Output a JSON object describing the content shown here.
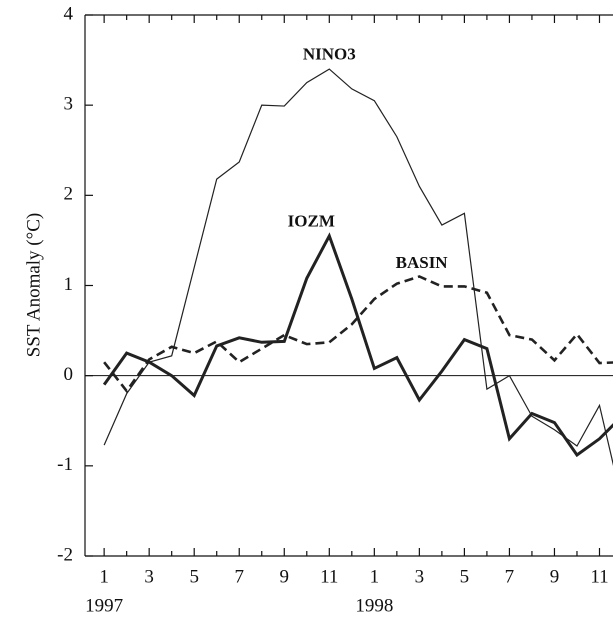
{
  "chart_data": {
    "type": "line",
    "y_label": "SST Anomaly (°C)",
    "x": [
      1,
      2,
      3,
      4,
      5,
      6,
      7,
      8,
      9,
      10,
      11,
      12,
      13,
      14,
      15,
      16,
      17,
      18,
      19,
      20,
      21,
      22,
      23,
      24
    ],
    "series": [
      {
        "name": "NINO3",
        "color": "#222",
        "width": 1.2,
        "dash": "none",
        "values": [
          -0.77,
          -0.2,
          0.15,
          0.22,
          1.2,
          2.18,
          2.37,
          3.0,
          2.99,
          3.25,
          3.4,
          3.18,
          3.05,
          2.65,
          2.1,
          1.67,
          1.8,
          -0.15,
          0.0,
          -0.45,
          -0.6,
          -0.78,
          -0.33,
          -1.4
        ]
      },
      {
        "name": "IOZM",
        "color": "#222",
        "width": 3,
        "dash": "none",
        "values": [
          -0.1,
          0.25,
          0.15,
          0.0,
          -0.22,
          0.33,
          0.42,
          0.37,
          0.38,
          1.08,
          1.55,
          0.85,
          0.08,
          0.2,
          -0.27,
          0.05,
          0.4,
          0.3,
          -0.7,
          -0.42,
          -0.52,
          -0.88,
          -0.7,
          -0.45
        ]
      },
      {
        "name": "BASIN",
        "color": "#222",
        "width": 2.6,
        "dash": "9 5",
        "values": [
          0.15,
          -0.17,
          0.18,
          0.32,
          0.25,
          0.38,
          0.15,
          0.3,
          0.45,
          0.35,
          0.37,
          0.57,
          0.85,
          1.02,
          1.1,
          0.99,
          0.99,
          0.92,
          0.45,
          0.4,
          0.17,
          0.46,
          0.14,
          0.15
        ]
      }
    ],
    "annotations": [
      {
        "text": "NINO3",
        "x": 11,
        "y": 3.55
      },
      {
        "text": "IOZM",
        "x": 10.2,
        "y": 1.7
      },
      {
        "text": "BASIN",
        "x": 15.1,
        "y": 1.24
      }
    ],
    "year_labels": [
      {
        "text": "1997",
        "x": 1
      },
      {
        "text": "1998",
        "x": 13
      }
    ],
    "xlim": [
      0.15,
      23.6
    ],
    "ylim": [
      -2,
      4
    ],
    "xticks": [
      1,
      3,
      5,
      7,
      9,
      11,
      {
        "value": 13,
        "label": "1"
      },
      {
        "value": 15,
        "label": "3"
      },
      {
        "value": 17,
        "label": "5"
      },
      {
        "value": 19,
        "label": "7"
      },
      {
        "value": 21,
        "label": "9"
      },
      {
        "value": 23,
        "label": "11"
      }
    ],
    "minor_xticks": [
      2,
      4,
      6,
      8,
      10,
      12,
      14,
      16,
      18,
      20,
      22
    ],
    "yticks": [
      -2,
      -1,
      0,
      1,
      2,
      3,
      4
    ],
    "hline": 0
  }
}
